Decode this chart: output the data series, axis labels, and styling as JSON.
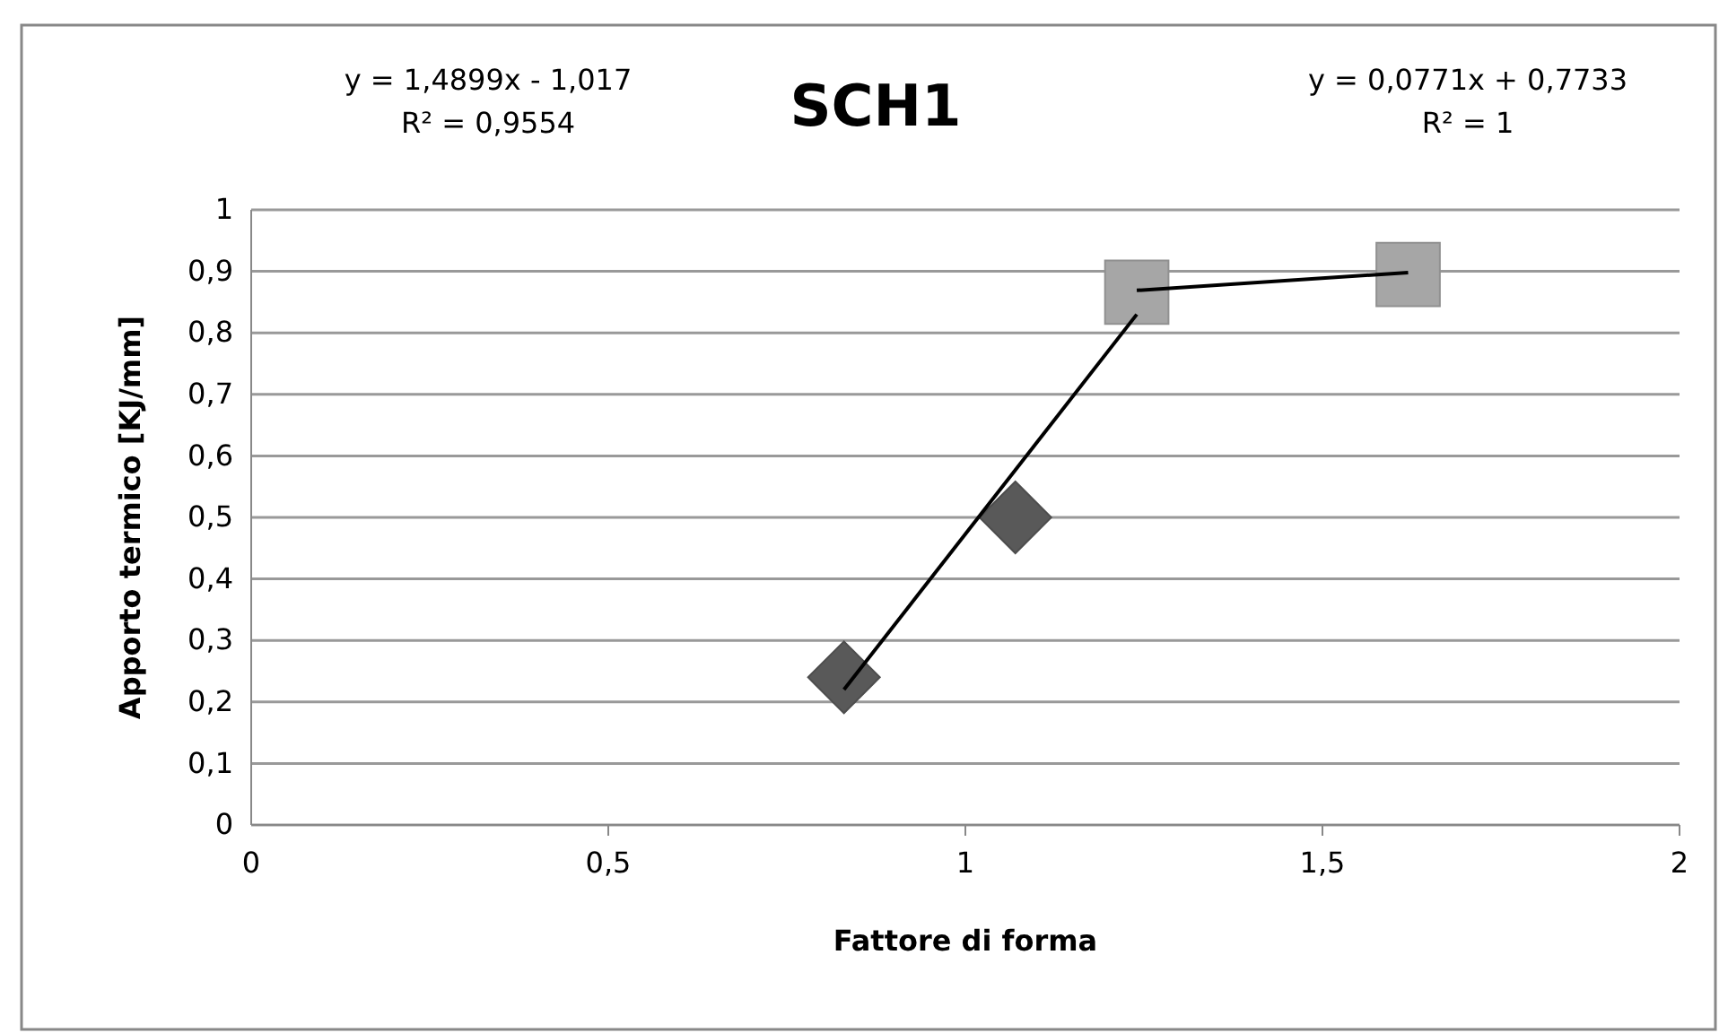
{
  "chart_data": {
    "type": "scatter",
    "title": "SCH1",
    "xlabel": "Fattore di forma",
    "ylabel": "Apporto termico [KJ/mm]",
    "xlim": [
      0,
      2
    ],
    "xticks": [
      0,
      {
        "value": 0.5,
        "label": "0,5"
      },
      1,
      {
        "value": 1.5,
        "label": "1,5"
      },
      2
    ],
    "ylim": [
      0,
      1
    ],
    "yticks": [
      0,
      {
        "value": 0.1,
        "label": "0,1"
      },
      {
        "value": 0.2,
        "label": "0,2"
      },
      {
        "value": 0.3,
        "label": "0,3"
      },
      {
        "value": 0.4,
        "label": "0,4"
      },
      {
        "value": 0.5,
        "label": "0,5"
      },
      {
        "value": 0.6,
        "label": "0,6"
      },
      {
        "value": 0.7,
        "label": "0,7"
      },
      {
        "value": 0.8,
        "label": "0,8"
      },
      {
        "value": 0.9,
        "label": "0,9"
      },
      1
    ],
    "grid": "y",
    "series": [
      {
        "marker": "diamond",
        "color": "#595959",
        "x": [
          0.83,
          1.07
        ],
        "values": [
          0.24,
          0.5
        ]
      },
      {
        "marker": "square",
        "color": "#a6a6a6",
        "x": [
          1.24,
          1.62
        ],
        "values": [
          0.866,
          0.895
        ]
      },
      {
        "type": "line",
        "marker": "none",
        "color": "#000000",
        "x": [
          0.83,
          1.24
        ],
        "values": [
          0.22,
          0.83
        ]
      },
      {
        "type": "line",
        "marker": "none",
        "color": "#000000",
        "x": [
          1.24,
          1.62
        ],
        "values": [
          0.869,
          0.898
        ]
      }
    ],
    "annotations": [
      "y = 1,4899x - 1,017\nR² = 0,9554",
      "y = 0,0771x + 0,7733\nR² = 1"
    ]
  }
}
